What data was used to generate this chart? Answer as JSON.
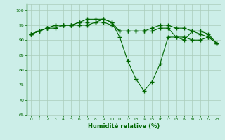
{
  "xlabel": "Humidité relative (%)",
  "ylabel": "",
  "background_color": "#cceee8",
  "grid_color": "#aaccbb",
  "line_color": "#006600",
  "marker_color": "#006600",
  "ylim": [
    65,
    102
  ],
  "xlim": [
    -0.5,
    23.5
  ],
  "yticks": [
    65,
    70,
    75,
    80,
    85,
    90,
    95,
    100
  ],
  "xticks": [
    0,
    1,
    2,
    3,
    4,
    5,
    6,
    7,
    8,
    9,
    10,
    11,
    12,
    13,
    14,
    15,
    16,
    17,
    18,
    19,
    20,
    21,
    22,
    23
  ],
  "series": [
    [
      92,
      93,
      94,
      94,
      95,
      95,
      96,
      97,
      97,
      97,
      96,
      91,
      83,
      77,
      73,
      76,
      82,
      91,
      91,
      90,
      93,
      92,
      91,
      89
    ],
    [
      92,
      93,
      94,
      95,
      95,
      95,
      96,
      96,
      96,
      97,
      96,
      93,
      93,
      93,
      93,
      94,
      95,
      95,
      94,
      94,
      93,
      93,
      92,
      89
    ],
    [
      92,
      93,
      94,
      95,
      95,
      95,
      95,
      95,
      96,
      96,
      95,
      93,
      93,
      93,
      93,
      93,
      94,
      94,
      91,
      91,
      90,
      90,
      91,
      89
    ]
  ]
}
